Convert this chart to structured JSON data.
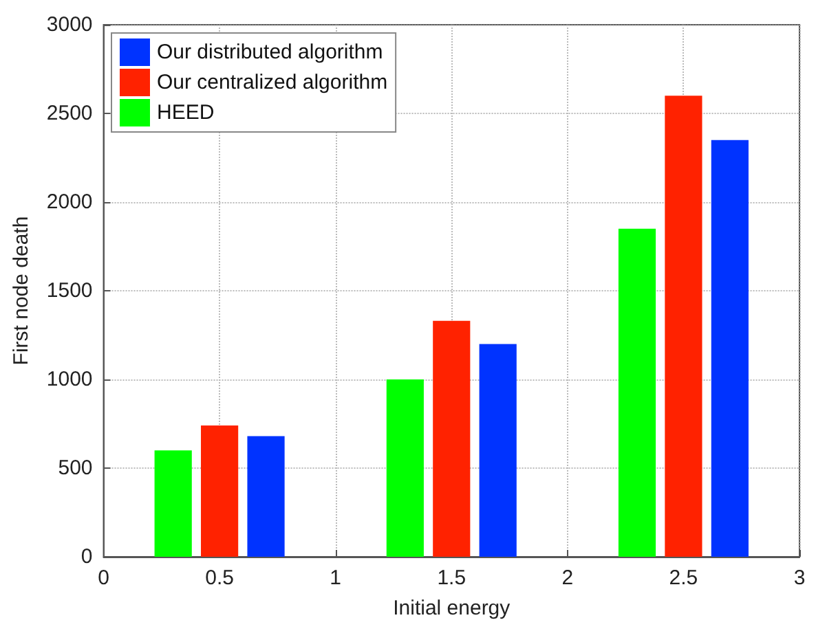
{
  "chart_data": {
    "type": "bar",
    "xlabel": "Initial energy",
    "ylabel": "First node death",
    "x": [
      0.5,
      1.5,
      2.5
    ],
    "series": [
      {
        "name": "HEED",
        "color": "#00ff00",
        "values": [
          600,
          1000,
          1850
        ]
      },
      {
        "name": "Our centralized algorithm",
        "color": "#ff2200",
        "values": [
          740,
          1330,
          2600
        ]
      },
      {
        "name": "Our distributed algorithm",
        "color": "#0033ff",
        "values": [
          680,
          1200,
          2350
        ]
      }
    ],
    "xlim": [
      0,
      3
    ],
    "xticks": [
      0,
      0.5,
      1,
      1.5,
      2,
      2.5,
      3
    ],
    "ylim": [
      0,
      3000
    ],
    "yticks": [
      0,
      500,
      1000,
      1500,
      2000,
      2500,
      3000
    ],
    "grid": true,
    "legend": "top left"
  }
}
